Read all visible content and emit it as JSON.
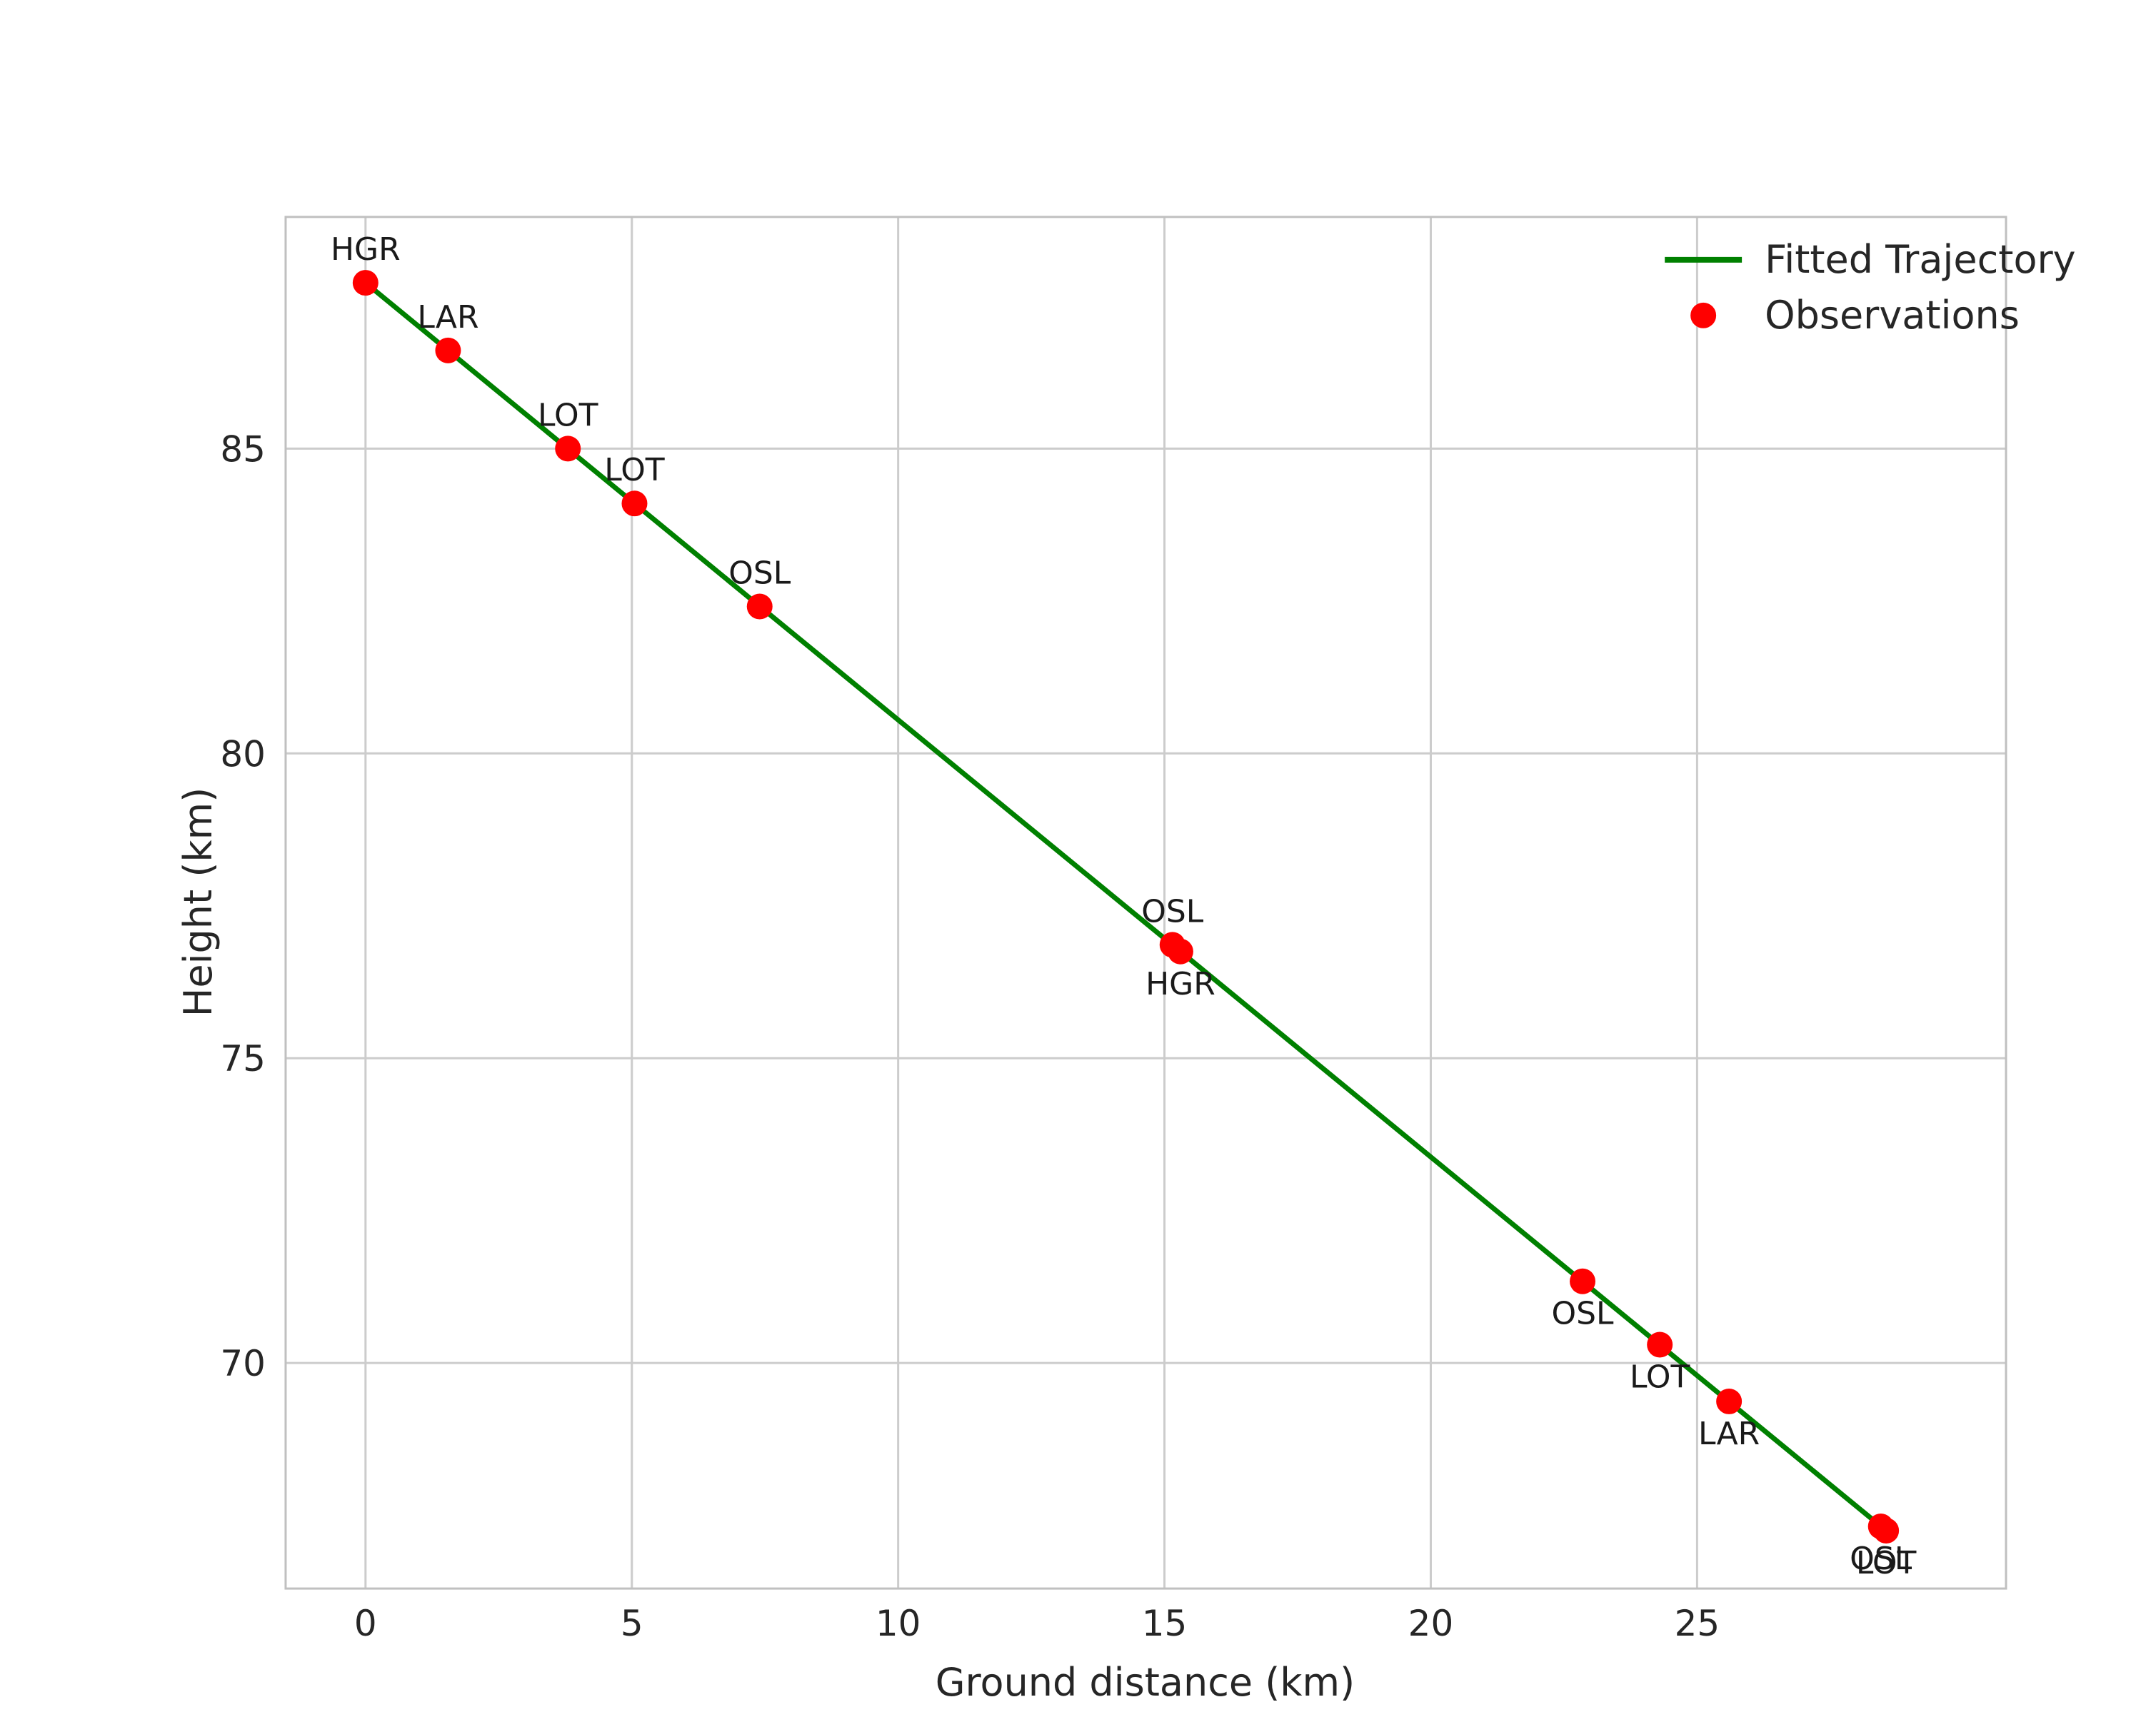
{
  "figure": {
    "background": "#ffffff",
    "grid_color": "#cccccc",
    "spine_color": "#c0c0c0",
    "text_color": "#262626"
  },
  "chart_data": {
    "type": "scatter",
    "title": "",
    "xlabel": "Ground distance (km)",
    "ylabel": "Height (km)",
    "xlim": [
      -1.5,
      30.8
    ],
    "ylim": [
      66.3,
      88.8
    ],
    "xticks": [
      0,
      5,
      10,
      15,
      20,
      25
    ],
    "yticks": [
      70,
      75,
      80,
      85
    ],
    "grid": true,
    "line_color": "#008000",
    "marker_color": "#ff0000",
    "marker_radius": 9,
    "fitted_line": {
      "name": "Fitted Trajectory",
      "x": [
        0.0,
        28.55
      ],
      "y": [
        87.72,
        67.25
      ],
      "slope_km_per_km": -0.717,
      "intercept_km": 87.72
    },
    "observations": [
      {
        "label": "HGR",
        "x": 0.0,
        "y": 87.72,
        "label_pos": "above"
      },
      {
        "label": "LAR",
        "x": 1.55,
        "y": 86.61,
        "label_pos": "above"
      },
      {
        "label": "LOT",
        "x": 3.8,
        "y": 85.0,
        "label_pos": "above"
      },
      {
        "label": "LOT",
        "x": 5.05,
        "y": 84.1,
        "label_pos": "above"
      },
      {
        "label": "OSL",
        "x": 7.4,
        "y": 82.41,
        "label_pos": "above"
      },
      {
        "label": "OSL",
        "x": 15.15,
        "y": 76.86,
        "label_pos": "above"
      },
      {
        "label": "HGR",
        "x": 15.3,
        "y": 76.75,
        "label_pos": "below"
      },
      {
        "label": "OSL",
        "x": 22.85,
        "y": 71.34,
        "label_pos": "below"
      },
      {
        "label": "LOT",
        "x": 24.3,
        "y": 70.3,
        "label_pos": "below"
      },
      {
        "label": "LAR",
        "x": 25.6,
        "y": 69.37,
        "label_pos": "below"
      },
      {
        "label": "OSL",
        "x": 28.45,
        "y": 67.32,
        "label_pos": "below"
      },
      {
        "label": "LOT",
        "x": 28.55,
        "y": 67.25,
        "label_pos": "below"
      }
    ],
    "legend": {
      "position": "upper right",
      "entries": [
        {
          "label": "Fitted Trajectory",
          "type": "line",
          "color": "#008000"
        },
        {
          "label": "Observations",
          "type": "marker",
          "color": "#ff0000"
        }
      ]
    }
  }
}
